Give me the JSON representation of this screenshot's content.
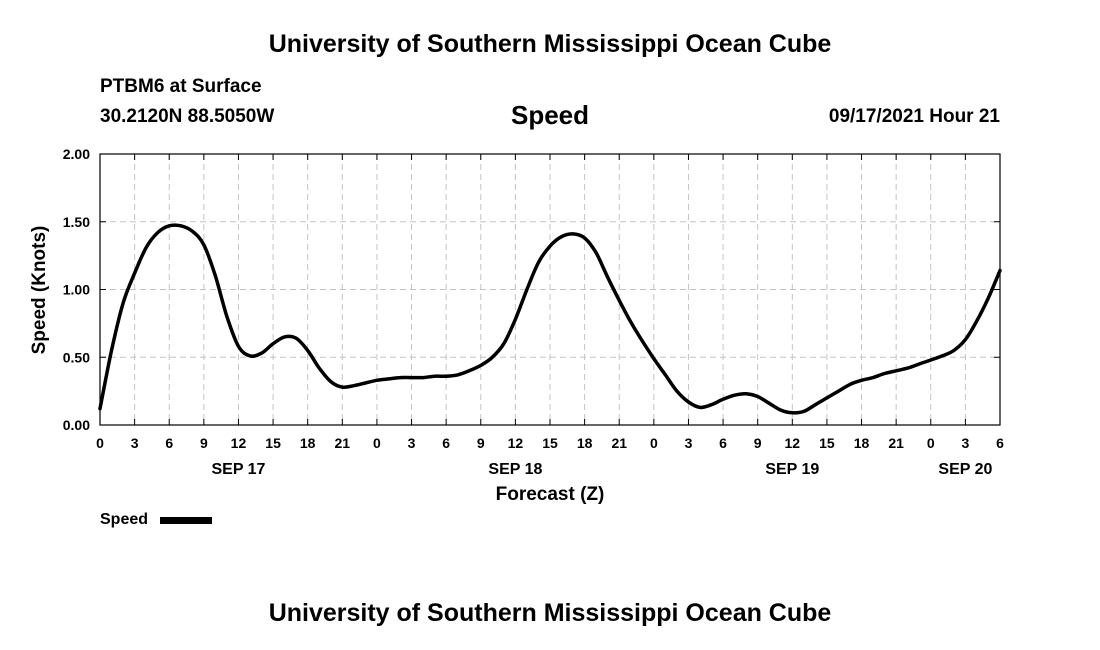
{
  "header": {
    "title": "University of Southern Mississippi Ocean Cube",
    "station": "PTBM6 at Surface",
    "coords": "30.2120N  88.5050W",
    "variable": "Speed",
    "datetime": "09/17/2021 Hour 21"
  },
  "footer": {
    "title": "University of Southern Mississippi Ocean Cube"
  },
  "chart_data": {
    "type": "line",
    "title": "Speed",
    "xlabel": "Forecast (Z)",
    "ylabel": "Speed (Knots)",
    "x_unit": "hours from SEP 17 00Z",
    "xlim": [
      0,
      78
    ],
    "ylim": [
      0,
      2.0
    ],
    "grid": true,
    "x_ticks": [
      0,
      3,
      6,
      9,
      12,
      15,
      18,
      21,
      24,
      27,
      30,
      33,
      36,
      39,
      42,
      45,
      48,
      51,
      54,
      57,
      60,
      63,
      66,
      69,
      72,
      75,
      78
    ],
    "x_tick_labels": [
      "0",
      "3",
      "6",
      "9",
      "12",
      "15",
      "18",
      "21",
      "0",
      "3",
      "6",
      "9",
      "12",
      "15",
      "18",
      "21",
      "0",
      "3",
      "6",
      "9",
      "12",
      "15",
      "18",
      "21",
      "0",
      "3",
      "6"
    ],
    "y_ticks": [
      0,
      0.5,
      1.0,
      1.5,
      2.0
    ],
    "y_tick_labels": [
      "0.00",
      "0.50",
      "1.00",
      "1.50",
      "2.00"
    ],
    "day_labels": [
      {
        "label": "SEP 17",
        "x": 12
      },
      {
        "label": "SEP 18",
        "x": 36
      },
      {
        "label": "SEP 19",
        "x": 60
      },
      {
        "label": "SEP 20",
        "x": 75
      }
    ],
    "legend": {
      "label": "Speed",
      "position": "bottom-left"
    },
    "series": [
      {
        "name": "Speed",
        "x": [
          0,
          1,
          2,
          3,
          4,
          5,
          6,
          7,
          8,
          9,
          10,
          11,
          12,
          13,
          14,
          15,
          16,
          17,
          18,
          19,
          20,
          21,
          22,
          23,
          24,
          25,
          26,
          27,
          28,
          29,
          30,
          31,
          32,
          33,
          34,
          35,
          36,
          37,
          38,
          39,
          40,
          41,
          42,
          43,
          44,
          45,
          46,
          47,
          48,
          49,
          50,
          51,
          52,
          53,
          54,
          55,
          56,
          57,
          58,
          59,
          60,
          61,
          62,
          63,
          64,
          65,
          66,
          67,
          68,
          69,
          70,
          71,
          72,
          73,
          74,
          75,
          76,
          77,
          78
        ],
        "values": [
          0.12,
          0.55,
          0.9,
          1.12,
          1.31,
          1.42,
          1.47,
          1.47,
          1.43,
          1.33,
          1.1,
          0.8,
          0.58,
          0.51,
          0.53,
          0.6,
          0.65,
          0.64,
          0.55,
          0.42,
          0.32,
          0.28,
          0.29,
          0.31,
          0.33,
          0.34,
          0.35,
          0.35,
          0.35,
          0.36,
          0.36,
          0.37,
          0.4,
          0.44,
          0.5,
          0.6,
          0.78,
          1.0,
          1.2,
          1.32,
          1.39,
          1.41,
          1.38,
          1.27,
          1.09,
          0.92,
          0.76,
          0.62,
          0.49,
          0.37,
          0.25,
          0.17,
          0.13,
          0.15,
          0.19,
          0.22,
          0.23,
          0.21,
          0.16,
          0.11,
          0.09,
          0.1,
          0.15,
          0.2,
          0.25,
          0.3,
          0.33,
          0.35,
          0.38,
          0.4,
          0.42,
          0.45,
          0.48,
          0.51,
          0.55,
          0.63,
          0.77,
          0.94,
          1.14
        ]
      }
    ]
  }
}
